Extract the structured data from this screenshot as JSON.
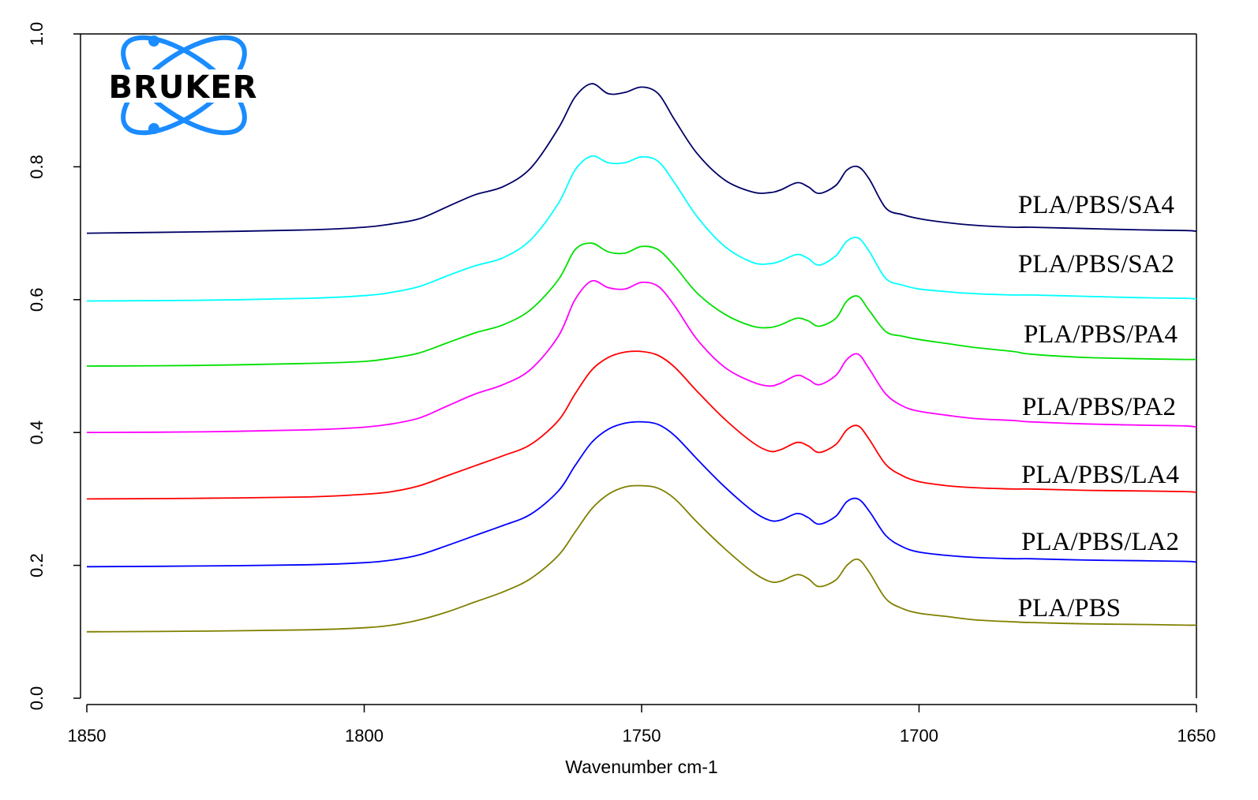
{
  "chart_data": {
    "type": "line",
    "title": "",
    "xlabel": "Wavenumber cm-1",
    "ylabel": "",
    "xlim": [
      1850,
      1650
    ],
    "ylim": [
      0.0,
      1.0
    ],
    "x_ticks": [
      1850,
      1800,
      1750,
      1700,
      1650
    ],
    "y_ticks": [
      0.0,
      0.2,
      0.4,
      0.6,
      0.8,
      1.0
    ],
    "x_tick_labels": [
      "1850",
      "1800",
      "1750",
      "1700",
      "1650"
    ],
    "y_tick_labels": [
      "0.0",
      "0.2",
      "0.4",
      "0.6",
      "0.8",
      "1.0"
    ],
    "x": [
      1850,
      1830,
      1810,
      1800,
      1795,
      1790,
      1785,
      1780,
      1775,
      1770,
      1765,
      1762,
      1759,
      1756,
      1753,
      1750,
      1747,
      1744,
      1740,
      1735,
      1730,
      1727,
      1725,
      1722,
      1720,
      1718,
      1715,
      1713,
      1711,
      1709,
      1706,
      1703,
      1700,
      1695,
      1690,
      1683,
      1680,
      1670,
      1660,
      1652,
      1650
    ],
    "series": [
      {
        "name": "PLA/PBS",
        "color": "#808000",
        "values": [
          0.1,
          0.101,
          0.103,
          0.106,
          0.11,
          0.118,
          0.13,
          0.145,
          0.16,
          0.18,
          0.215,
          0.25,
          0.285,
          0.307,
          0.318,
          0.32,
          0.316,
          0.3,
          0.265,
          0.225,
          0.19,
          0.176,
          0.176,
          0.186,
          0.18,
          0.168,
          0.178,
          0.2,
          0.209,
          0.19,
          0.15,
          0.135,
          0.128,
          0.123,
          0.118,
          0.115,
          0.114,
          0.112,
          0.111,
          0.11,
          0.11
        ]
      },
      {
        "name": "PLA/PBS/LA2",
        "color": "#0000ff",
        "values": [
          0.198,
          0.199,
          0.201,
          0.204,
          0.208,
          0.216,
          0.23,
          0.245,
          0.26,
          0.277,
          0.312,
          0.35,
          0.385,
          0.405,
          0.414,
          0.416,
          0.412,
          0.395,
          0.36,
          0.318,
          0.282,
          0.268,
          0.268,
          0.278,
          0.272,
          0.262,
          0.274,
          0.296,
          0.3,
          0.282,
          0.245,
          0.228,
          0.22,
          0.215,
          0.212,
          0.21,
          0.21,
          0.208,
          0.207,
          0.206,
          0.205
        ]
      },
      {
        "name": "PLA/PBS/LA4",
        "color": "#ff0000",
        "values": [
          0.3,
          0.301,
          0.303,
          0.307,
          0.311,
          0.32,
          0.335,
          0.35,
          0.365,
          0.382,
          0.418,
          0.458,
          0.494,
          0.513,
          0.521,
          0.522,
          0.516,
          0.498,
          0.462,
          0.42,
          0.385,
          0.372,
          0.374,
          0.385,
          0.38,
          0.37,
          0.382,
          0.404,
          0.41,
          0.39,
          0.352,
          0.335,
          0.326,
          0.32,
          0.317,
          0.315,
          0.315,
          0.313,
          0.312,
          0.311,
          0.31
        ]
      },
      {
        "name": "PLA/PBS/PA2",
        "color": "#ff00ff",
        "values": [
          0.4,
          0.401,
          0.404,
          0.408,
          0.413,
          0.422,
          0.44,
          0.458,
          0.472,
          0.495,
          0.545,
          0.6,
          0.628,
          0.618,
          0.616,
          0.626,
          0.62,
          0.59,
          0.54,
          0.498,
          0.476,
          0.47,
          0.474,
          0.486,
          0.48,
          0.472,
          0.486,
          0.51,
          0.518,
          0.496,
          0.458,
          0.44,
          0.432,
          0.426,
          0.421,
          0.418,
          0.416,
          0.413,
          0.411,
          0.41,
          0.408
        ]
      },
      {
        "name": "PLA/PBS/PA4",
        "color": "#00e000",
        "values": [
          0.5,
          0.501,
          0.504,
          0.507,
          0.512,
          0.52,
          0.535,
          0.55,
          0.562,
          0.585,
          0.63,
          0.675,
          0.685,
          0.672,
          0.67,
          0.68,
          0.675,
          0.65,
          0.61,
          0.578,
          0.56,
          0.558,
          0.562,
          0.572,
          0.568,
          0.56,
          0.572,
          0.598,
          0.605,
          0.584,
          0.552,
          0.545,
          0.54,
          0.534,
          0.528,
          0.522,
          0.518,
          0.513,
          0.511,
          0.51,
          0.51
        ]
      },
      {
        "name": "PLA/PBS/SA2",
        "color": "#00ffff",
        "values": [
          0.598,
          0.599,
          0.602,
          0.606,
          0.611,
          0.62,
          0.636,
          0.651,
          0.663,
          0.69,
          0.745,
          0.795,
          0.816,
          0.806,
          0.806,
          0.815,
          0.808,
          0.775,
          0.725,
          0.68,
          0.656,
          0.654,
          0.658,
          0.668,
          0.662,
          0.652,
          0.666,
          0.688,
          0.693,
          0.673,
          0.632,
          0.622,
          0.616,
          0.612,
          0.609,
          0.607,
          0.607,
          0.605,
          0.603,
          0.602,
          0.601
        ]
      },
      {
        "name": "PLA/PBS/SA4",
        "color": "#000066",
        "values": [
          0.7,
          0.702,
          0.705,
          0.709,
          0.714,
          0.722,
          0.74,
          0.758,
          0.77,
          0.798,
          0.858,
          0.905,
          0.925,
          0.91,
          0.912,
          0.92,
          0.91,
          0.87,
          0.82,
          0.78,
          0.762,
          0.761,
          0.765,
          0.776,
          0.77,
          0.76,
          0.772,
          0.795,
          0.8,
          0.782,
          0.738,
          0.728,
          0.722,
          0.716,
          0.712,
          0.709,
          0.709,
          0.707,
          0.705,
          0.704,
          0.703
        ]
      }
    ],
    "series_labels": [
      "PLA/PBS/SA4",
      "PLA/PBS/SA2",
      "PLA/PBS/PA4",
      "PLA/PBS/PA2",
      "PLA/PBS/LA4",
      "PLA/PBS/LA2",
      "PLA/PBS"
    ],
    "grid": false,
    "legend_placement": "right, inline labels"
  },
  "logo": {
    "text": "BRUKER",
    "color": "#1a8cff"
  }
}
